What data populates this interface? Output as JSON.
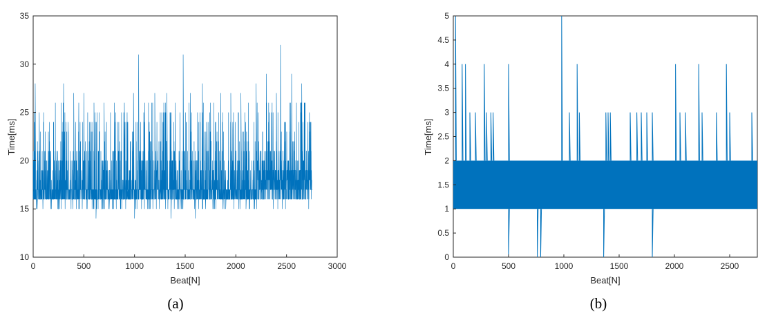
{
  "chart_data": [
    {
      "type": "line",
      "caption": "(a)",
      "xlabel": "Beat[N]",
      "ylabel": "Time[ms]",
      "xlim": [
        0,
        3000
      ],
      "ylim": [
        10,
        35
      ],
      "xticks": [
        0,
        500,
        1000,
        1500,
        2000,
        2500,
        3000
      ],
      "yticks": [
        10,
        15,
        20,
        25,
        30,
        35
      ],
      "grid": false,
      "series": [
        {
          "color": "#0072BD",
          "n_points": 2750,
          "baseline_range": [
            16,
            17
          ],
          "value_range": [
            14,
            32
          ],
          "points": [
            [
              0,
              16
            ],
            [
              20,
              28
            ],
            [
              40,
              15
            ],
            [
              60,
              25
            ],
            [
              80,
              17
            ],
            [
              100,
              24
            ],
            [
              150,
              16
            ],
            [
              200,
              24
            ],
            [
              250,
              16
            ],
            [
              300,
              28
            ],
            [
              350,
              16
            ],
            [
              400,
              27
            ],
            [
              450,
              15
            ],
            [
              500,
              27
            ],
            [
              550,
              16
            ],
            [
              600,
              26
            ],
            [
              620,
              14
            ],
            [
              700,
              26
            ],
            [
              750,
              15
            ],
            [
              800,
              26
            ],
            [
              850,
              16
            ],
            [
              900,
              26
            ],
            [
              930,
              16
            ],
            [
              990,
              27
            ],
            [
              1000,
              14
            ],
            [
              1040,
              31
            ],
            [
              1060,
              16
            ],
            [
              1100,
              26
            ],
            [
              1150,
              15
            ],
            [
              1200,
              27
            ],
            [
              1250,
              16
            ],
            [
              1320,
              27
            ],
            [
              1360,
              14
            ],
            [
              1400,
              26
            ],
            [
              1450,
              15
            ],
            [
              1480,
              31
            ],
            [
              1500,
              16
            ],
            [
              1550,
              27
            ],
            [
              1600,
              14
            ],
            [
              1670,
              28
            ],
            [
              1700,
              15
            ],
            [
              1750,
              26
            ],
            [
              1800,
              16
            ],
            [
              1850,
              27
            ],
            [
              1900,
              15
            ],
            [
              1950,
              27
            ],
            [
              2000,
              16
            ],
            [
              2050,
              27
            ],
            [
              2100,
              15
            ],
            [
              2200,
              28
            ],
            [
              2250,
              16
            ],
            [
              2300,
              29
            ],
            [
              2350,
              17
            ],
            [
              2400,
              27
            ],
            [
              2440,
              32
            ],
            [
              2500,
              16
            ],
            [
              2550,
              29
            ],
            [
              2600,
              16
            ],
            [
              2650,
              28
            ],
            [
              2700,
              17
            ],
            [
              2750,
              17
            ]
          ]
        }
      ]
    },
    {
      "type": "line",
      "caption": "(b)",
      "xlabel": "Beat[N]",
      "ylabel": "Time[ms]",
      "xlim": [
        0,
        2750
      ],
      "ylim": [
        0,
        5
      ],
      "xticks": [
        0,
        500,
        1000,
        1500,
        2000,
        2500
      ],
      "yticks": [
        0,
        0.5,
        1,
        1.5,
        2,
        2.5,
        3,
        3.5,
        4,
        4.5,
        5
      ],
      "grid": false,
      "series": [
        {
          "color": "#0072BD",
          "n_points": 2750,
          "band": [
            1,
            2
          ],
          "spikes_up": [
            [
              20,
              5
            ],
            [
              80,
              4
            ],
            [
              110,
              4
            ],
            [
              280,
              4
            ],
            [
              500,
              4
            ],
            [
              980,
              5
            ],
            [
              1120,
              4
            ],
            [
              2010,
              4
            ],
            [
              2220,
              4
            ],
            [
              2470,
              4
            ],
            [
              150,
              3
            ],
            [
              200,
              3
            ],
            [
              300,
              3
            ],
            [
              340,
              3
            ],
            [
              360,
              3
            ],
            [
              1050,
              3
            ],
            [
              1140,
              3
            ],
            [
              1380,
              3
            ],
            [
              1400,
              3
            ],
            [
              1420,
              3
            ],
            [
              1600,
              3
            ],
            [
              1660,
              3
            ],
            [
              1700,
              3
            ],
            [
              1750,
              3
            ],
            [
              1800,
              3
            ],
            [
              2050,
              3
            ],
            [
              2100,
              3
            ],
            [
              2250,
              3
            ],
            [
              2380,
              3
            ],
            [
              2500,
              3
            ],
            [
              2700,
              3
            ]
          ],
          "spikes_down": [
            [
              500,
              0
            ],
            [
              760,
              0
            ],
            [
              790,
              0
            ],
            [
              1360,
              0
            ],
            [
              1800,
              0
            ]
          ]
        }
      ]
    }
  ]
}
